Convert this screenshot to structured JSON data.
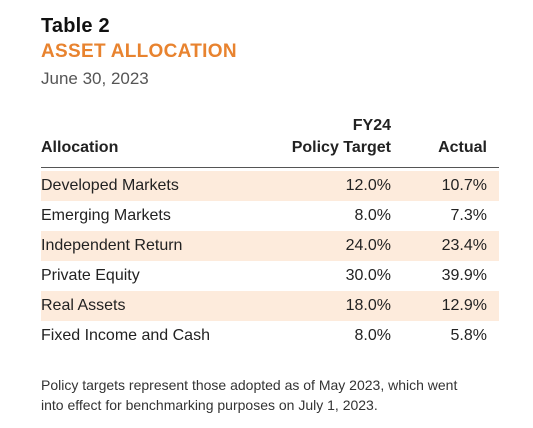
{
  "header": {
    "table_number": "Table 2",
    "title": "ASSET ALLOCATION",
    "date": "June 30, 2023"
  },
  "columns": {
    "allocation": "Allocation",
    "target_line1": "FY24",
    "target_line2": "Policy Target",
    "actual": "Actual"
  },
  "rows": [
    {
      "label": "Developed Markets",
      "target": "12.0%",
      "actual": "10.7%"
    },
    {
      "label": "Emerging Markets",
      "target": "8.0%",
      "actual": "7.3%"
    },
    {
      "label": "Independent Return",
      "target": "24.0%",
      "actual": "23.4%"
    },
    {
      "label": "Private Equity",
      "target": "30.0%",
      "actual": "39.9%"
    },
    {
      "label": "Real Assets",
      "target": "18.0%",
      "actual": "12.9%"
    },
    {
      "label": "Fixed Income and Cash",
      "target": "8.0%",
      "actual": "5.8%"
    }
  ],
  "footnote": {
    "line1": "Policy targets represent those adopted as of May 2023, which went",
    "line2": "into effect for benchmarking purposes on July 1, 2023."
  },
  "colors": {
    "accent": "#e8832f",
    "row_shade": "#fdebdc"
  }
}
